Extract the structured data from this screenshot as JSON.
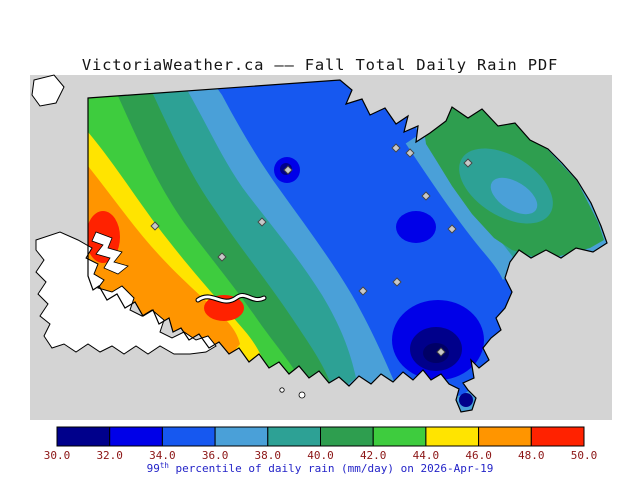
{
  "title": "VictoriaWeather.ca —— Fall Total Daily Rain PDF",
  "caption": {
    "prefix": "99",
    "superscript": "th",
    "rest": " percentile of daily rain (mm/day) on 2026-Apr-19"
  },
  "chart_data": {
    "type": "heatmap",
    "subtype": "filled-contour-map",
    "title": "VictoriaWeather.ca —— Fall Total Daily Rain PDF",
    "variable": "99th percentile of daily rain",
    "units": "mm/day",
    "date": "2026-Apr-19",
    "contour_levels": [
      30,
      32,
      34,
      36,
      38,
      40,
      42,
      44,
      46,
      48,
      50
    ],
    "tick_labels": [
      "30.0",
      "32.0",
      "34.0",
      "36.0",
      "38.0",
      "40.0",
      "42.0",
      "44.0",
      "46.0",
      "48.0",
      "50.0"
    ],
    "colors": [
      "#00008b",
      "#0000e8",
      "#1658f0",
      "#4aa0d8",
      "#2da195",
      "#2e9e4f",
      "#3ecc3e",
      "#ffe400",
      "#ff9500",
      "#ff2200"
    ],
    "below_range_color": "#000066",
    "colorbar": {
      "orientation": "horizontal",
      "position": "bottom"
    },
    "pattern_summary": "Highest values (46-50 mm/day, orange/red) in the west; lowest values (30-34 mm/day, dark blue) in the southeast and north-center; green/teal transition bands between.",
    "station_marker_count": 12
  },
  "colors": {
    "title": "#151515",
    "tick_label": "#8b1515",
    "caption": "#2424c8",
    "sea": "#d4d4d4",
    "land_outside": "#ffffff",
    "coastline": "#000000",
    "marker_fill": "#c8c8c8",
    "marker_stroke": "#444444"
  }
}
